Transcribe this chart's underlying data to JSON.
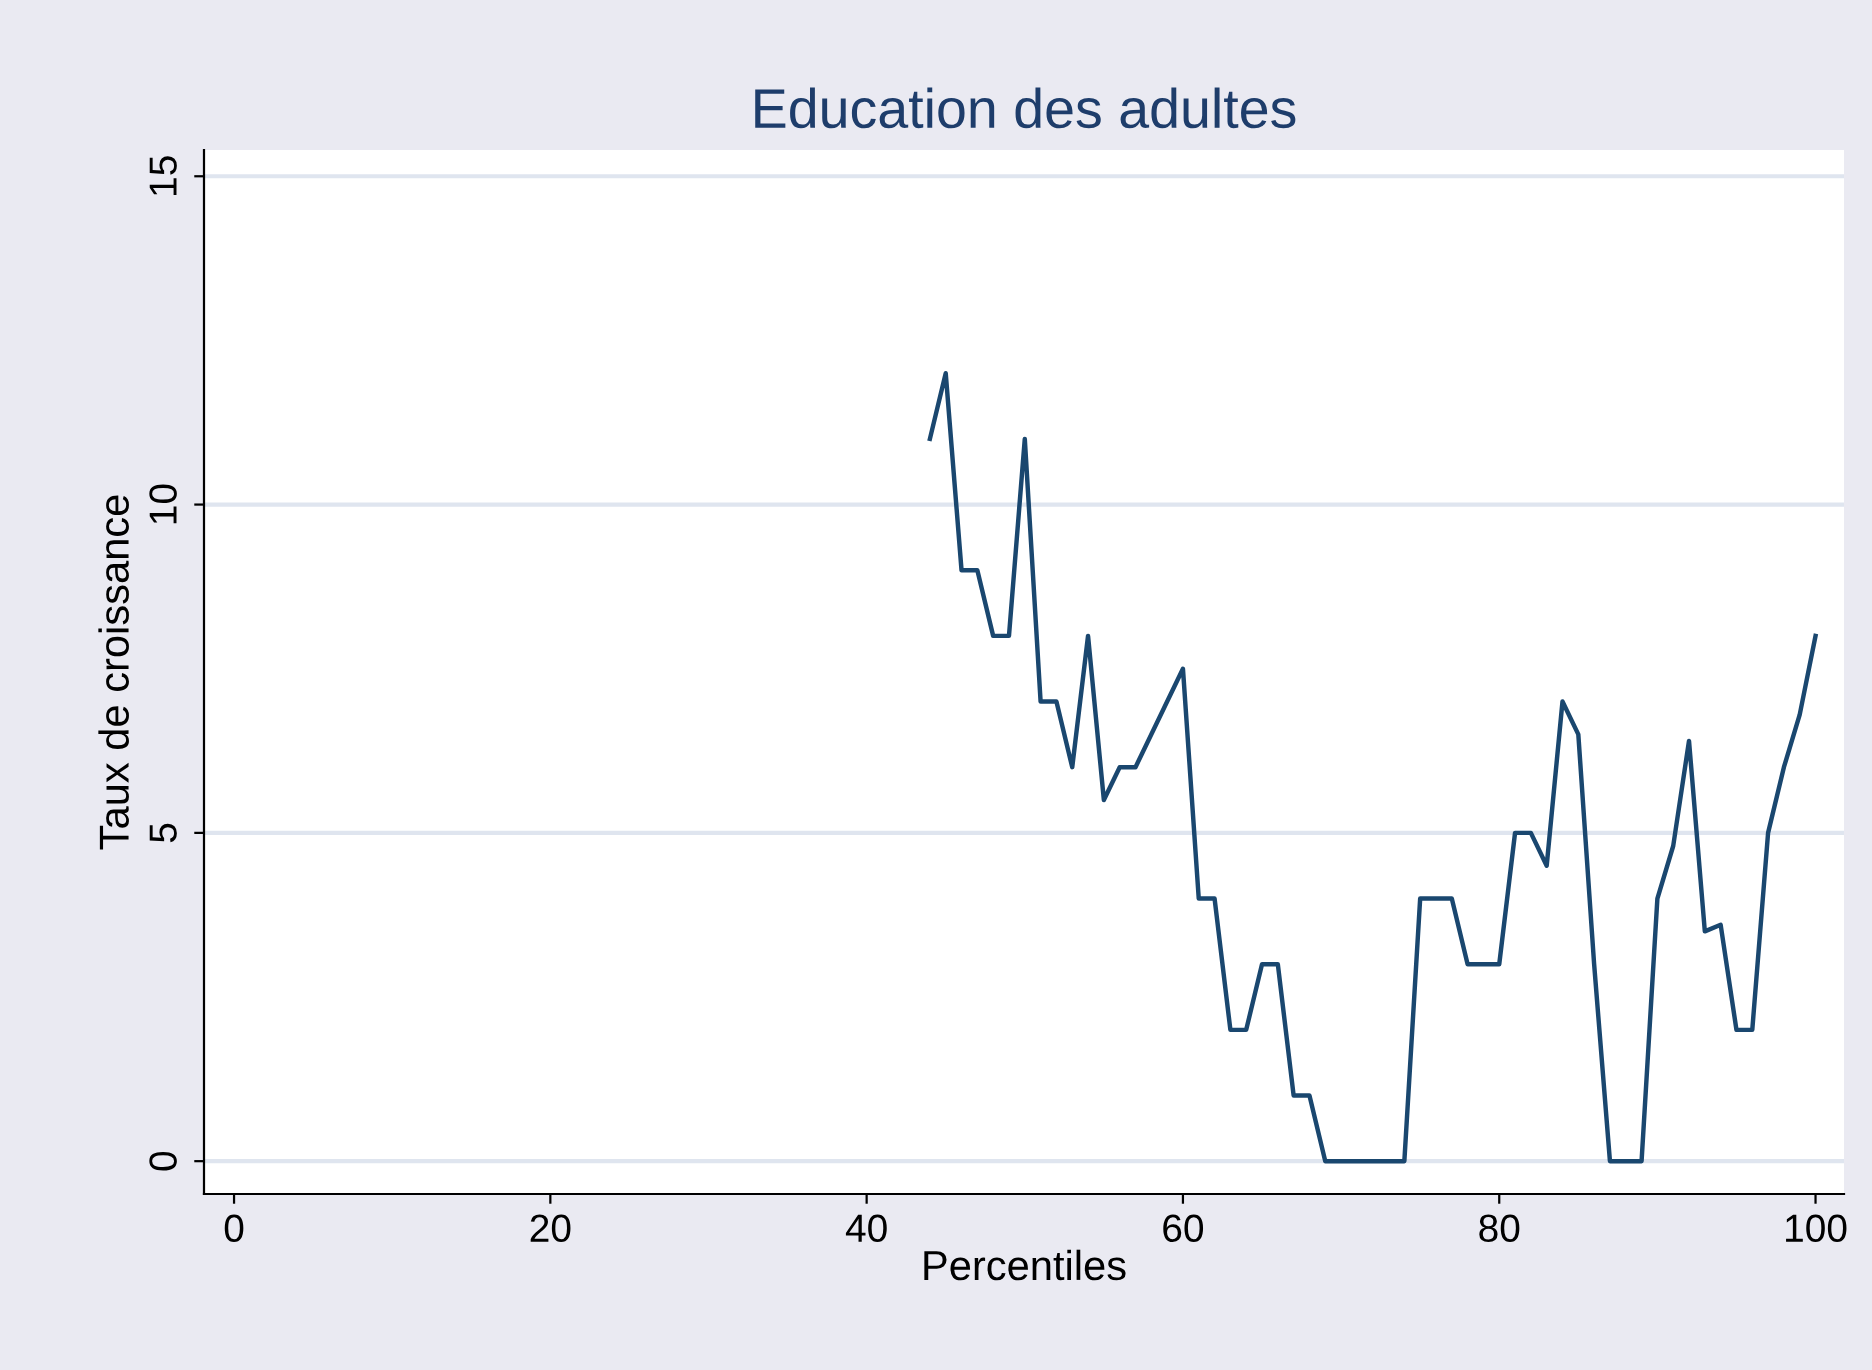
{
  "chart_data": {
    "type": "line",
    "title": "Education des adultes",
    "xlabel": "Percentiles",
    "ylabel": "Taux de croissance",
    "series": [
      {
        "color": "#1a476f",
        "x": [
          44,
          45,
          46,
          47,
          48,
          49,
          50,
          51,
          52,
          53,
          54,
          55,
          56,
          57,
          60,
          61,
          62,
          63,
          64,
          65,
          66,
          67,
          68,
          69,
          70,
          71,
          72,
          73,
          74,
          75,
          76,
          77,
          78,
          79,
          80,
          81,
          82,
          83,
          84,
          85,
          86,
          87,
          88,
          89,
          90,
          91,
          92,
          93,
          94,
          95,
          96,
          97,
          98,
          99,
          100
        ],
        "values": [
          11,
          12,
          9,
          9,
          8,
          8,
          11,
          7,
          7,
          6,
          8,
          5.5,
          6,
          6,
          7.5,
          4,
          4,
          2,
          2,
          3,
          3,
          1,
          1,
          0,
          0,
          0,
          0,
          0,
          0,
          4,
          4,
          4,
          3,
          3,
          3,
          5,
          5,
          4.5,
          7,
          6.5,
          3,
          0,
          0,
          0,
          4,
          4.8,
          6.4,
          3.5,
          3.6,
          2,
          2,
          5,
          6,
          6.8,
          8
        ]
      }
    ],
    "xlim": [
      -1.9,
      101.8
    ],
    "ylim": [
      -0.5,
      15.4
    ],
    "xticks": [
      0,
      20,
      40,
      60,
      80,
      100
    ],
    "yticks": [
      0,
      5,
      10,
      15
    ],
    "grid": "y",
    "marker": "none",
    "line_style": "solid"
  }
}
